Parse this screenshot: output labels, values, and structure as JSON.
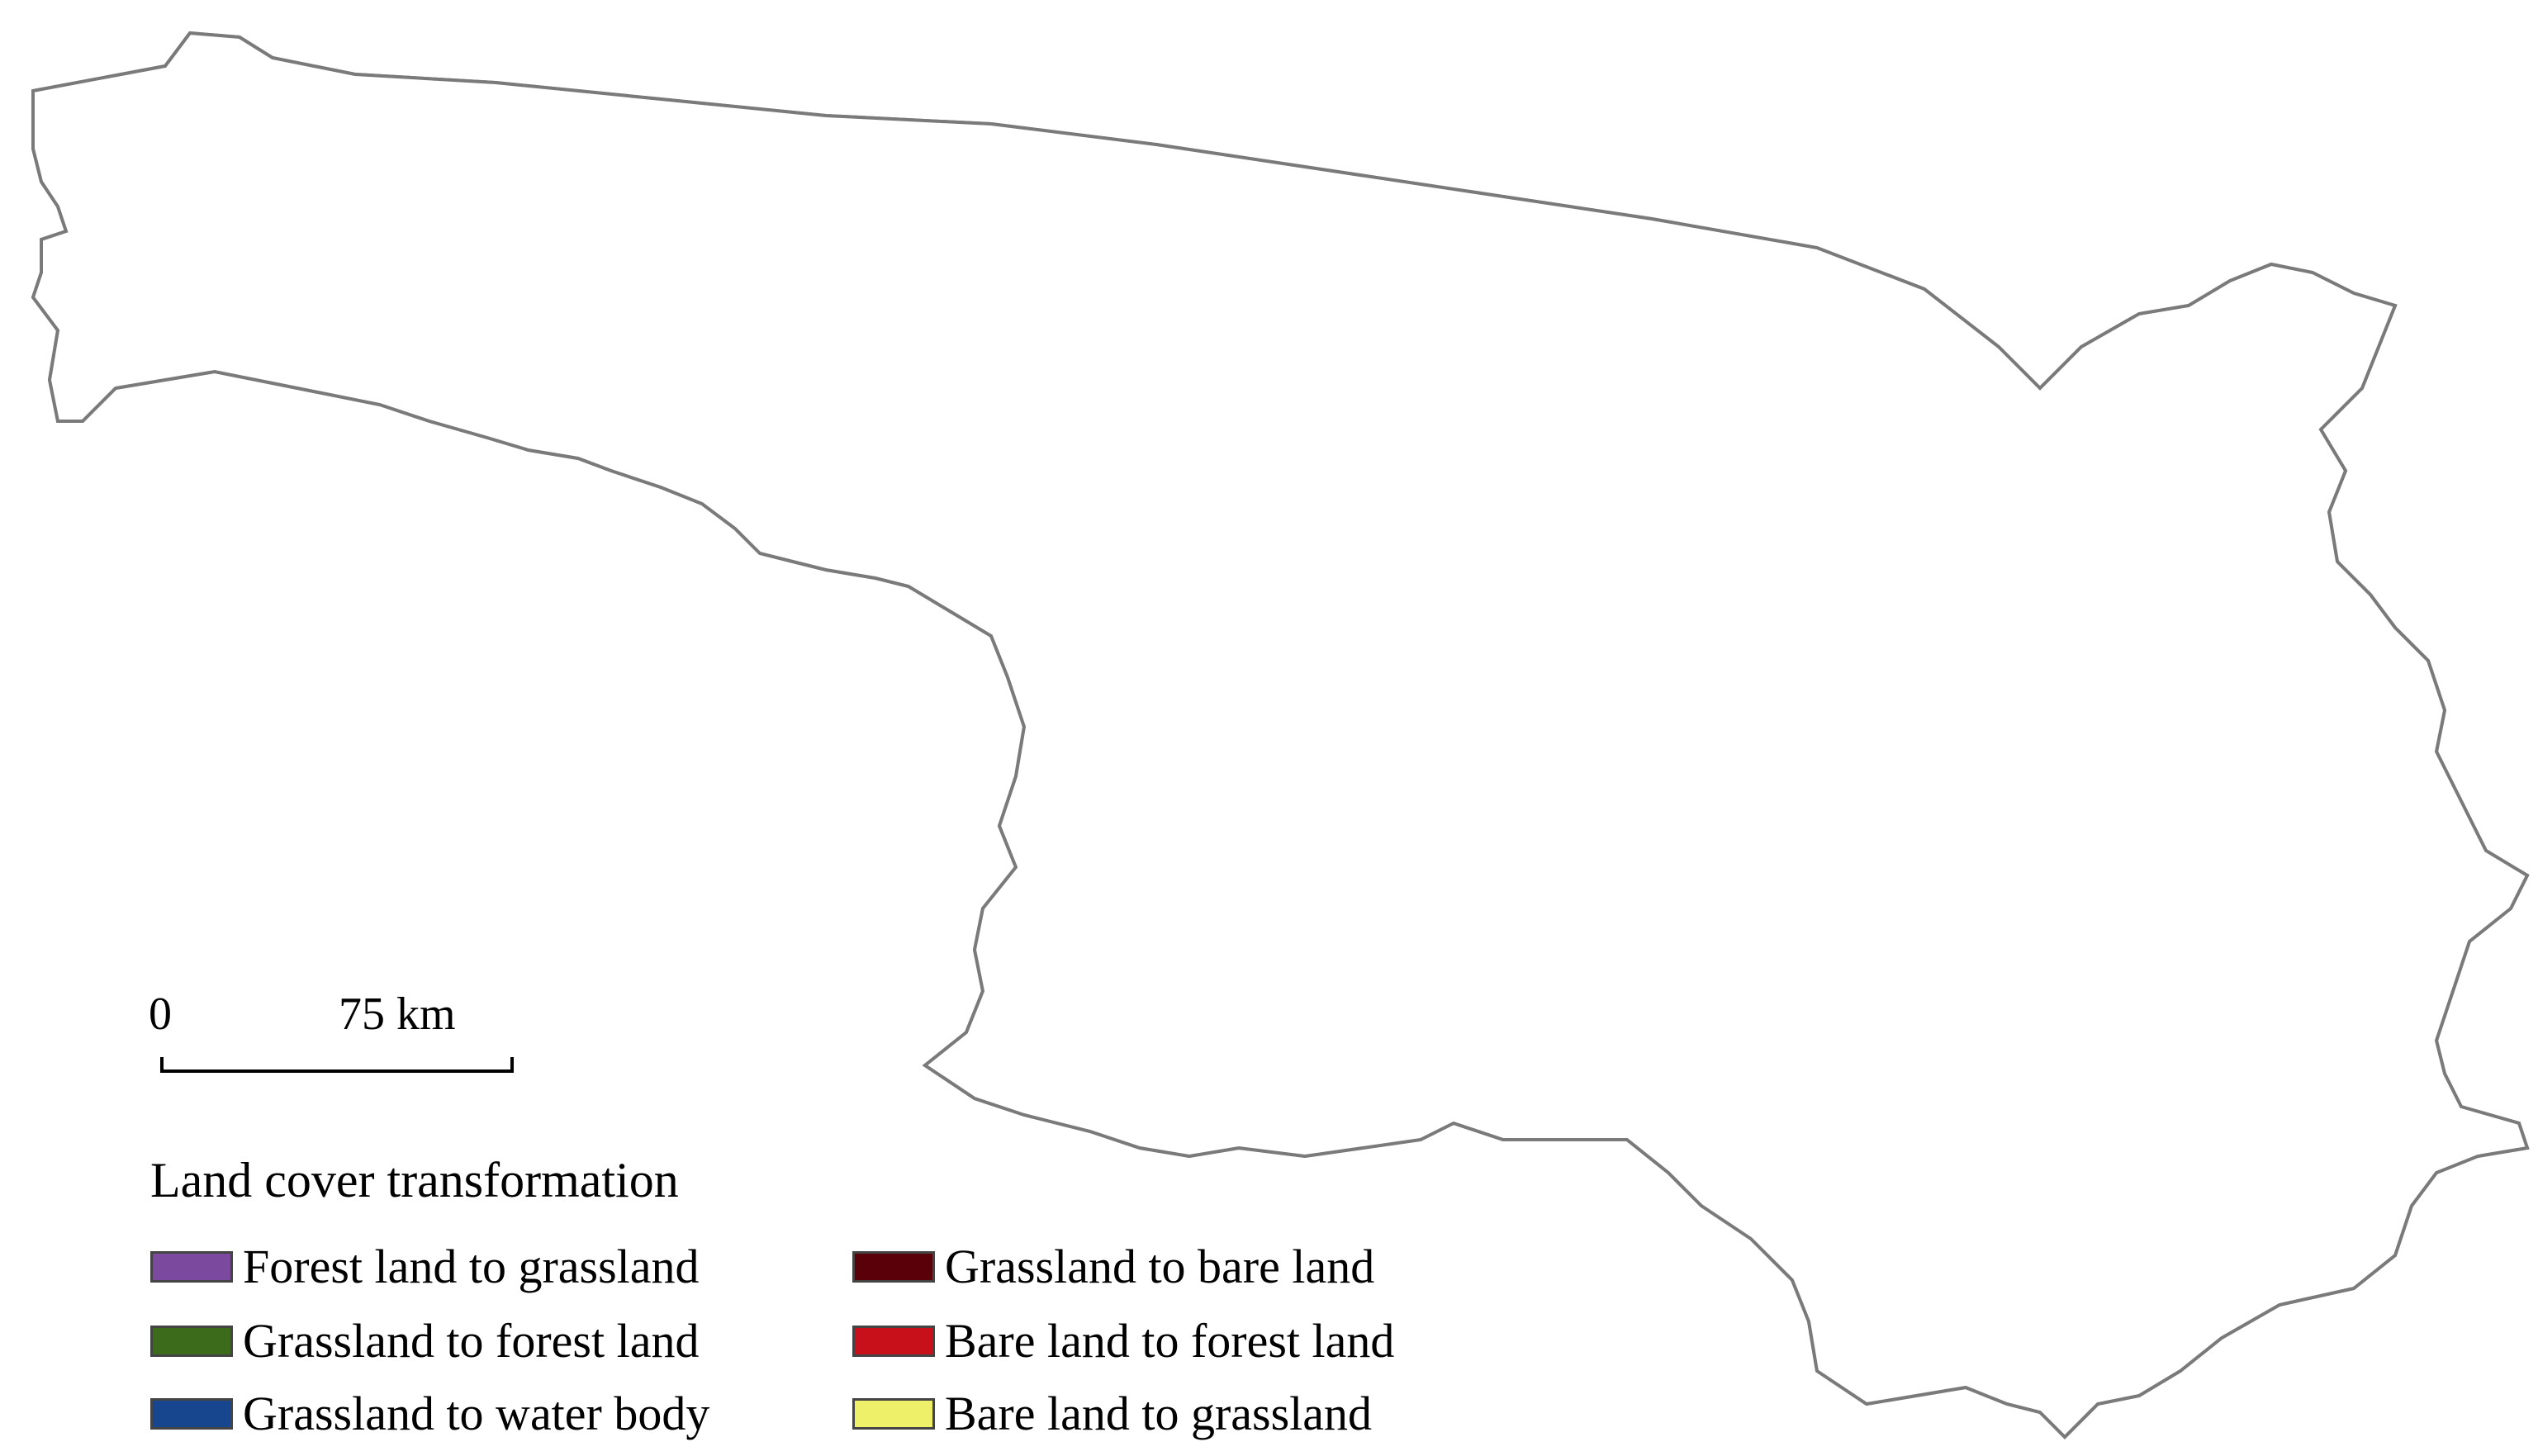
{
  "map": {
    "scale_bar": {
      "zero_label": "0",
      "max_label": "75 km"
    },
    "legend": {
      "title": "Land cover transformation",
      "items": [
        {
          "label": "Forest land to grassland",
          "color": "#7b4a9e"
        },
        {
          "label": "Grassland to forest land",
          "color": "#3c6b1c"
        },
        {
          "label": "Grassland to water body",
          "color": "#17468f"
        },
        {
          "label": "Grassland to bare land",
          "color": "#5a0008"
        },
        {
          "label": "Bare land to forest land",
          "color": "#c8101a"
        },
        {
          "label": "Bare land to grassland",
          "color": "#eef06a"
        }
      ]
    },
    "boundary_color": "#7a7a7a"
  }
}
